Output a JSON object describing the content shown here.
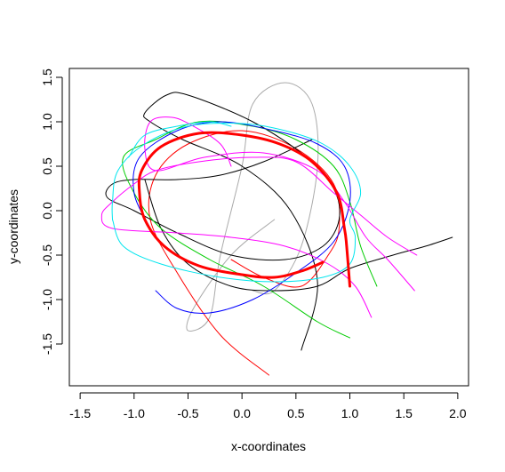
{
  "chart_data": {
    "type": "line",
    "title": "",
    "xlabel": "x-coordinates",
    "ylabel": "y-coordinates",
    "xlim": [
      -1.6,
      2.1
    ],
    "ylim": [
      -1.97,
      1.6
    ],
    "xticks": [
      -1.5,
      -1.0,
      -0.5,
      0.0,
      0.5,
      1.0,
      1.5,
      2.0
    ],
    "xtick_labels": [
      "-1.5",
      "-1.0",
      "-0.5",
      "0.0",
      "0.5",
      "1.0",
      "1.5",
      "2.0"
    ],
    "yticks": [
      -1.5,
      -1.0,
      -0.5,
      0.0,
      0.5,
      1.0,
      1.5
    ],
    "ytick_labels": [
      "-1.5",
      "-1.0",
      "-0.5",
      "0.0",
      "0.5",
      "1.0",
      "1.5"
    ],
    "grid": false,
    "legend": "none",
    "series": [
      {
        "color": "#aaaaaa",
        "width": 1,
        "points": [
          [
            0.3,
            -0.1
          ],
          [
            -0.1,
            -0.5
          ],
          [
            -0.45,
            -1.1
          ],
          [
            -0.5,
            -1.35
          ],
          [
            -0.3,
            -1.2
          ],
          [
            -0.2,
            -0.5
          ],
          [
            0.0,
            0.5
          ],
          [
            0.1,
            1.2
          ],
          [
            0.4,
            1.44
          ],
          [
            0.65,
            1.2
          ],
          [
            0.7,
            0.5
          ],
          [
            0.55,
            -0.4
          ],
          [
            0.3,
            -0.9
          ],
          [
            0.1,
            -0.9
          ]
        ]
      },
      {
        "color": "#ff0000",
        "width": 1,
        "points": [
          [
            0.25,
            -1.85
          ],
          [
            -0.2,
            -1.4
          ],
          [
            -0.6,
            -0.7
          ],
          [
            -0.85,
            -0.1
          ],
          [
            -0.8,
            0.4
          ],
          [
            -0.5,
            0.75
          ],
          [
            0.0,
            0.9
          ],
          [
            0.5,
            0.7
          ],
          [
            0.85,
            0.3
          ],
          [
            0.9,
            -0.2
          ],
          [
            0.8,
            -0.5
          ],
          [
            0.55,
            -0.85
          ],
          [
            0.2,
            -0.75
          ],
          [
            -0.1,
            -0.55
          ]
        ]
      },
      {
        "color": "#000000",
        "width": 1,
        "points": [
          [
            0.55,
            -1.57
          ],
          [
            0.7,
            -0.8
          ],
          [
            0.45,
            0.0
          ],
          [
            0.0,
            0.5
          ],
          [
            -0.55,
            0.8
          ],
          [
            -0.85,
            1.0
          ],
          [
            -0.9,
            1.1
          ],
          [
            -0.7,
            1.3
          ],
          [
            -0.5,
            1.3
          ],
          [
            0.1,
            1.0
          ],
          [
            0.6,
            0.6
          ],
          [
            0.85,
            0.25
          ],
          [
            0.9,
            -0.1
          ],
          [
            0.75,
            -0.4
          ],
          [
            0.4,
            -0.55
          ],
          [
            -0.1,
            -0.5
          ],
          [
            -0.6,
            -0.25
          ],
          [
            -1.0,
            0.0
          ],
          [
            -1.25,
            0.15
          ],
          [
            -1.2,
            0.3
          ],
          [
            -1.0,
            0.35
          ],
          [
            -0.6,
            0.35
          ],
          [
            -0.2,
            0.4
          ],
          [
            0.2,
            0.55
          ],
          [
            0.65,
            0.8
          ]
        ]
      },
      {
        "color": "#000000",
        "width": 1,
        "points": [
          [
            -0.9,
            0.35
          ],
          [
            -0.75,
            -0.2
          ],
          [
            -0.5,
            -0.6
          ],
          [
            -0.1,
            -0.85
          ],
          [
            0.3,
            -0.9
          ],
          [
            0.7,
            -0.85
          ],
          [
            1.0,
            -0.65
          ],
          [
            1.4,
            -0.5
          ],
          [
            1.7,
            -0.4
          ],
          [
            1.95,
            -0.3
          ]
        ]
      },
      {
        "color": "#00cc00",
        "width": 1,
        "points": [
          [
            1.0,
            -1.43
          ],
          [
            0.7,
            -1.25
          ],
          [
            0.2,
            -0.85
          ],
          [
            -0.3,
            -0.55
          ],
          [
            -0.75,
            -0.2
          ],
          [
            -1.0,
            0.2
          ],
          [
            -1.1,
            0.6
          ],
          [
            -0.8,
            0.8
          ],
          [
            -0.4,
            1.0
          ],
          [
            0.1,
            0.95
          ],
          [
            0.5,
            0.8
          ],
          [
            0.85,
            0.5
          ],
          [
            1.0,
            0.1
          ],
          [
            1.1,
            -0.4
          ],
          [
            1.25,
            -0.85
          ]
        ]
      },
      {
        "color": "#0000ff",
        "width": 1,
        "points": [
          [
            -0.8,
            -0.9
          ],
          [
            -0.6,
            -1.1
          ],
          [
            -0.3,
            -1.15
          ],
          [
            0.1,
            -1.0
          ],
          [
            0.5,
            -0.7
          ],
          [
            0.85,
            -0.35
          ],
          [
            1.0,
            0.1
          ],
          [
            0.95,
            0.5
          ],
          [
            0.7,
            0.75
          ],
          [
            0.3,
            0.9
          ],
          [
            -0.2,
            1.0
          ],
          [
            -0.6,
            0.9
          ],
          [
            -0.95,
            0.6
          ],
          [
            -1.0,
            0.2
          ],
          [
            -0.85,
            -0.2
          ]
        ]
      },
      {
        "color": "#ff00ff",
        "width": 1,
        "points": [
          [
            1.62,
            -0.5
          ],
          [
            1.35,
            -0.3
          ],
          [
            1.1,
            -0.05
          ],
          [
            0.85,
            0.2
          ],
          [
            0.5,
            0.55
          ],
          [
            0.1,
            0.6
          ],
          [
            -0.4,
            0.55
          ],
          [
            -0.8,
            0.45
          ],
          [
            -1.0,
            0.3
          ],
          [
            -1.2,
            0.1
          ],
          [
            -1.3,
            -0.05
          ],
          [
            -1.2,
            -0.2
          ],
          [
            -0.6,
            -0.25
          ],
          [
            -0.1,
            -0.3
          ],
          [
            0.4,
            -0.4
          ],
          [
            0.8,
            -0.6
          ],
          [
            1.05,
            -0.85
          ],
          [
            1.2,
            -1.2
          ]
        ]
      },
      {
        "color": "#ff00ff",
        "width": 1,
        "points": [
          [
            1.6,
            -0.9
          ],
          [
            1.35,
            -0.55
          ],
          [
            1.15,
            -0.3
          ],
          [
            0.95,
            0.1
          ],
          [
            0.7,
            0.45
          ],
          [
            0.2,
            0.65
          ],
          [
            -0.35,
            0.6
          ],
          [
            -0.8,
            0.45
          ],
          [
            -0.9,
            0.7
          ],
          [
            -0.85,
            1.0
          ],
          [
            -0.65,
            1.05
          ],
          [
            -0.45,
            0.95
          ],
          [
            -0.2,
            0.75
          ],
          [
            -0.1,
            0.5
          ]
        ]
      },
      {
        "color": "#00e5ee",
        "width": 1,
        "points": [
          [
            -1.2,
            -0.1
          ],
          [
            -1.1,
            -0.4
          ],
          [
            -0.75,
            -0.6
          ],
          [
            -0.2,
            -0.75
          ],
          [
            0.3,
            -0.8
          ],
          [
            0.75,
            -0.75
          ],
          [
            1.0,
            -0.6
          ],
          [
            1.05,
            -0.3
          ],
          [
            1.0,
            -0.1
          ],
          [
            1.1,
            0.2
          ],
          [
            1.0,
            0.5
          ],
          [
            0.75,
            0.75
          ],
          [
            0.4,
            0.9
          ],
          [
            0.0,
            0.98
          ],
          [
            -0.5,
            0.95
          ],
          [
            -0.9,
            0.75
          ],
          [
            -1.15,
            0.45
          ],
          [
            -1.2,
            0.1
          ],
          [
            -1.2,
            -0.1
          ]
        ]
      },
      {
        "color": "#00e5ee",
        "width": 1,
        "points": [
          [
            -1.05,
            0.6
          ],
          [
            -0.9,
            0.85
          ],
          [
            -0.6,
            0.95
          ],
          [
            -0.3,
            1.0
          ],
          [
            -0.1,
            0.95
          ]
        ]
      },
      {
        "color": "#ff0000",
        "width": 3,
        "points": [
          [
            1.0,
            -0.85
          ],
          [
            0.97,
            -0.4
          ],
          [
            0.95,
            -0.2
          ],
          [
            0.88,
            0.2
          ],
          [
            0.65,
            0.55
          ],
          [
            0.35,
            0.75
          ],
          [
            0.0,
            0.85
          ],
          [
            -0.4,
            0.87
          ],
          [
            -0.75,
            0.72
          ],
          [
            -0.93,
            0.45
          ],
          [
            -0.95,
            0.2
          ],
          [
            -0.9,
            -0.1
          ],
          [
            -0.72,
            -0.4
          ],
          [
            -0.4,
            -0.62
          ],
          [
            0.0,
            -0.72
          ],
          [
            0.3,
            -0.75
          ],
          [
            0.55,
            -0.68
          ],
          [
            0.75,
            -0.58
          ]
        ]
      }
    ]
  }
}
